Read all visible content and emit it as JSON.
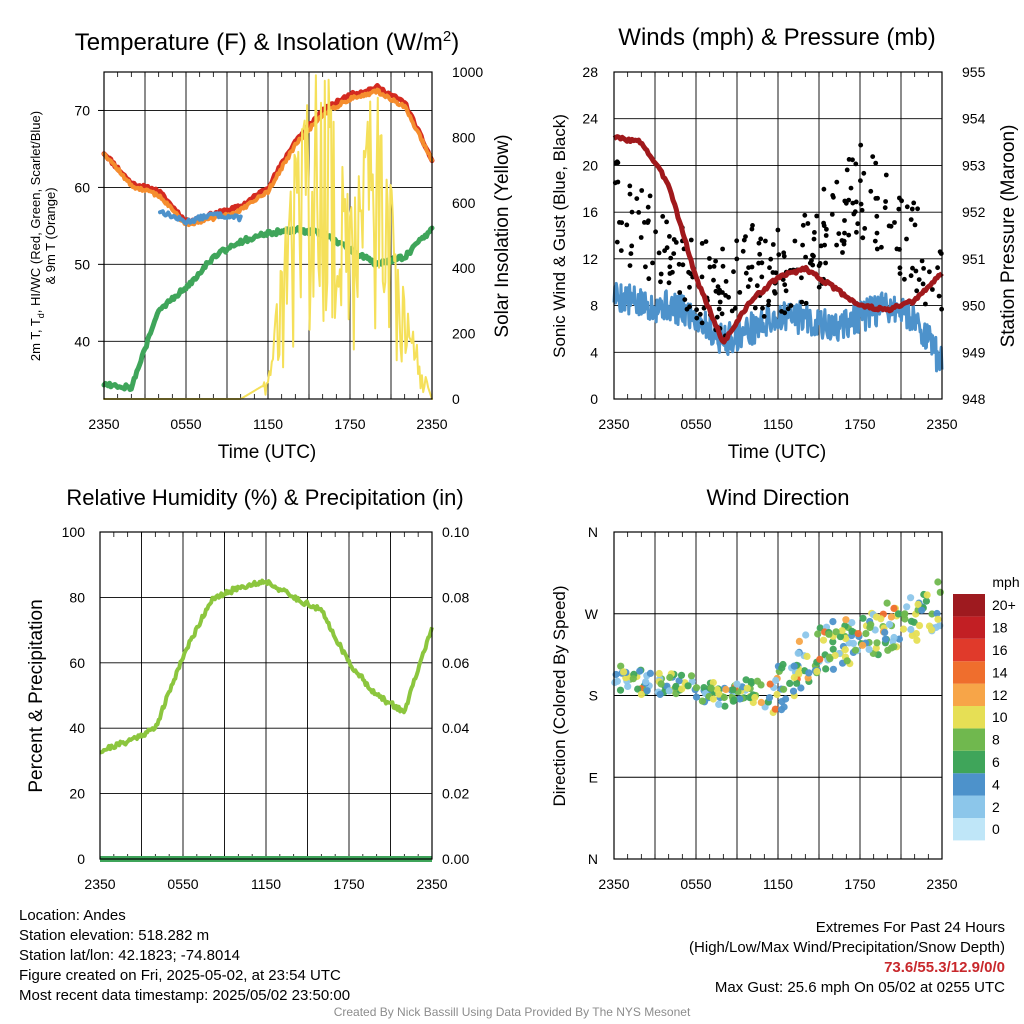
{
  "panels": {
    "temp": {
      "title": "Temperature (F) & Insolation (W/m",
      "title_sup": "2",
      "title_close": ")",
      "ylabel_left_1": "2m T, T",
      "ylabel_left_sub": "d",
      "ylabel_left_2": ", HI/WC (Red, Green, Scarlet/Blue)",
      "ylabel_left_3": "& 9m T (Orange)",
      "ylabel_right": "Solar Insolation (Yellow)",
      "xlabel": "Time (UTC)",
      "y_ticks": [
        "40",
        "50",
        "60",
        "70"
      ],
      "y2_ticks": [
        "0",
        "200",
        "400",
        "600",
        "800",
        "1000"
      ],
      "x_ticks": [
        "2350",
        "0550",
        "1150",
        "1750",
        "2350"
      ]
    },
    "wind": {
      "title": "Winds (mph) & Pressure (mb)",
      "ylabel_left": "Sonic Wind & Gust (Blue, Black)",
      "ylabel_right": "Station Pressure (Maroon)",
      "xlabel": "Time (UTC)",
      "y_ticks": [
        "0",
        "4",
        "8",
        "12",
        "16",
        "20",
        "24",
        "28"
      ],
      "y2_ticks": [
        "948",
        "949",
        "950",
        "951",
        "952",
        "953",
        "954",
        "955"
      ],
      "x_ticks": [
        "2350",
        "0550",
        "1150",
        "1750",
        "2350"
      ]
    },
    "rh": {
      "title": "Relative Humidity (%) & Precipitation (in)",
      "ylabel_left": "Percent & Precipitation",
      "y_ticks": [
        "0",
        "20",
        "40",
        "60",
        "80",
        "100"
      ],
      "y2_ticks": [
        "0.00",
        "0.02",
        "0.04",
        "0.06",
        "0.08",
        "0.10"
      ],
      "x_ticks": [
        "2350",
        "0550",
        "1150",
        "1750",
        "2350"
      ]
    },
    "dir": {
      "title": "Wind Direction",
      "ylabel_left": "Direction (Colored By Speed)",
      "y_ticks": [
        "N",
        "E",
        "S",
        "W",
        "N"
      ],
      "x_ticks": [
        "2350",
        "0550",
        "1150",
        "1750",
        "2350"
      ],
      "legend_title": "mph",
      "legend_labels": [
        "0",
        "2",
        "4",
        "6",
        "8",
        "10",
        "12",
        "14",
        "16",
        "18",
        "20+"
      ],
      "legend_colors": [
        "#bfe6f8",
        "#8cc6ea",
        "#4d92cb",
        "#3fa55a",
        "#70b84e",
        "#e6df55",
        "#f7a548",
        "#ef6e2d",
        "#e03a2b",
        "#c21f24",
        "#9e1a1f"
      ]
    }
  },
  "info": {
    "location": "Location: Andes",
    "elevation": "Station elevation: 518.282 m",
    "latlon": "Station lat/lon: 42.1823; -74.8014",
    "created": "Figure created on Fri, 2025-05-02, at 23:54 UTC",
    "recent": "Most recent data timestamp: 2025/05/02 23:50:00",
    "extremes_title": "Extremes For Past 24 Hours",
    "extremes_sub": "(High/Low/Max Wind/Precipitation/Snow Depth)",
    "extremes_values": "73.6/55.3/12.9/0/0",
    "max_gust": "Max Gust: 25.6 mph On 05/02 at 0255 UTC",
    "credit": "Created By Nick Bassill Using Data Provided By The NYS Mesonet"
  },
  "chart_data": [
    {
      "type": "line",
      "title": "Temperature (F) & Insolation (W/m2)",
      "xlabel": "Time (UTC)",
      "x_ticks": [
        "2350",
        "0550",
        "1150",
        "1750",
        "2350"
      ],
      "ylim": [
        32.5,
        75
      ],
      "y2lim": [
        0,
        1000
      ],
      "x": [
        0,
        2,
        4,
        6,
        8,
        10,
        12,
        14,
        16,
        18,
        20,
        22,
        24
      ],
      "series": [
        {
          "color": "#d42a20",
          "axis": "left",
          "values": [
            64.5,
            60.5,
            59.5,
            55.5,
            56.5,
            57.5,
            60,
            66,
            70,
            72,
            73,
            71,
            63.5
          ]
        },
        {
          "color": "#f58d2e",
          "axis": "left",
          "values": [
            64.5,
            60.2,
            59,
            55.2,
            56,
            57,
            59.5,
            65.5,
            69.5,
            71.5,
            72.5,
            70.5,
            63.5
          ]
        },
        {
          "color": "#4d92cb",
          "axis": "left",
          "values": [
            null,
            null,
            57,
            55.5,
            56.5,
            56,
            null,
            null,
            null,
            null,
            null,
            null,
            null
          ]
        },
        {
          "color": "#3fa55a",
          "axis": "left",
          "values": [
            34.5,
            34,
            44,
            47,
            51,
            53,
            54,
            54.5,
            54,
            52,
            50,
            51,
            54.5
          ]
        },
        {
          "color": "#f5e05a",
          "axis": "right",
          "values": [
            0,
            0,
            0,
            0,
            0,
            0,
            50,
            650,
            900,
            500,
            850,
            250,
            0
          ]
        }
      ]
    },
    {
      "type": "line",
      "title": "Winds (mph) & Pressure (mb)",
      "xlabel": "Time (UTC)",
      "x_ticks": [
        "2350",
        "0550",
        "1150",
        "1750",
        "2350"
      ],
      "ylim": [
        0,
        28
      ],
      "y2lim": [
        948,
        955
      ],
      "x": [
        0,
        2,
        4,
        6,
        8,
        10,
        12,
        14,
        16,
        18,
        20,
        22,
        24
      ],
      "series": [
        {
          "color": "#4d92cb",
          "axis": "left",
          "values": [
            9,
            8,
            8,
            7,
            5,
            6,
            7,
            7,
            6,
            7,
            8,
            7,
            3
          ]
        },
        {
          "color": "#000000",
          "axis": "left",
          "type": "scatter",
          "values": [
            17,
            14,
            13,
            10,
            9,
            11,
            11,
            12,
            15,
            18,
            16,
            13,
            9
          ]
        },
        {
          "color": "#a0191c",
          "axis": "right",
          "values": [
            953.6,
            953.5,
            952.6,
            950.6,
            949.2,
            950.1,
            950.6,
            950.8,
            950.4,
            950.0,
            949.9,
            950.1,
            950.7
          ]
        }
      ]
    },
    {
      "type": "line",
      "title": "Relative Humidity (%) & Precipitation (in)",
      "x_ticks": [
        "2350",
        "0550",
        "1150",
        "1750",
        "2350"
      ],
      "ylim": [
        0,
        100
      ],
      "y2lim": [
        0,
        0.1
      ],
      "x": [
        0,
        2,
        4,
        6,
        8,
        10,
        12,
        14,
        16,
        18,
        20,
        22,
        24
      ],
      "series": [
        {
          "color": "#8cc63e",
          "axis": "left",
          "values": [
            33,
            36,
            40,
            62,
            79,
            83,
            85,
            80,
            76,
            60,
            50,
            45,
            71
          ]
        },
        {
          "color": "#3fa55a",
          "axis": "right",
          "values": [
            0,
            0,
            0,
            0,
            0,
            0,
            0,
            0,
            0,
            0,
            0,
            0,
            0
          ]
        }
      ]
    },
    {
      "type": "scatter",
      "title": "Wind Direction",
      "x_ticks": [
        "2350",
        "0550",
        "1150",
        "1750",
        "2350"
      ],
      "y_ticks": [
        "N",
        "E",
        "S",
        "W",
        "N"
      ],
      "ylim": [
        0,
        360
      ],
      "x": [
        0,
        2,
        4,
        6,
        8,
        10,
        12,
        14,
        16,
        18,
        20,
        22,
        24
      ],
      "series": [
        {
          "values": [
            200,
            195,
            190,
            190,
            180,
            185,
            185,
            220,
            235,
            245,
            255,
            265,
            280
          ]
        }
      ]
    }
  ]
}
